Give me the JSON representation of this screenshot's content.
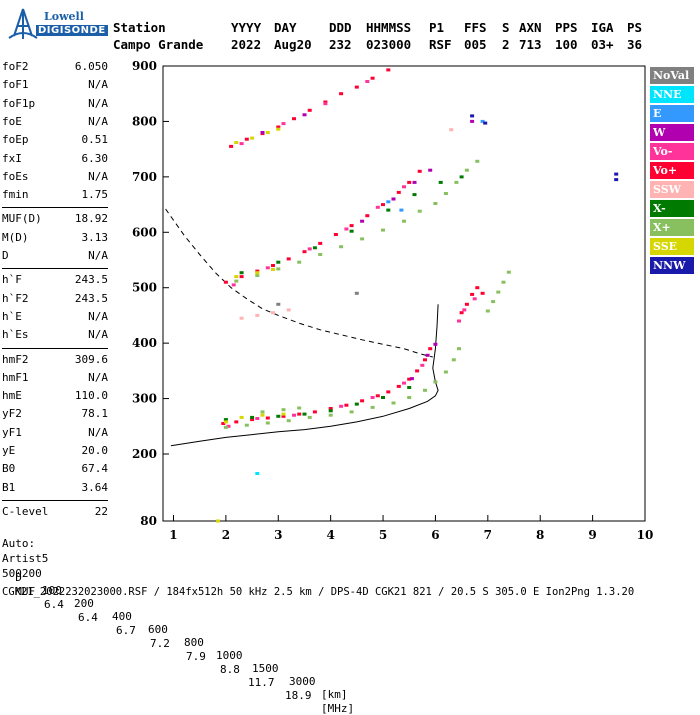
{
  "logo": {
    "line1": "Lowell",
    "line2": "DIGISONDE"
  },
  "header": {
    "labels": [
      "Station",
      "YYYY",
      "DAY",
      "DDD",
      "HHMMSS",
      "P1",
      "FFS",
      "S",
      "AXN",
      "PPS",
      "IGA",
      "PS"
    ],
    "values": [
      "Campo Grande",
      "2022",
      "Aug20",
      "232",
      "023000",
      "RSF",
      "005",
      "2",
      "713",
      "100",
      "03+",
      "36"
    ]
  },
  "params": {
    "group1": [
      {
        "k": "foF2",
        "v": "6.050"
      },
      {
        "k": "foF1",
        "v": "N/A"
      },
      {
        "k": "foF1p",
        "v": "N/A"
      },
      {
        "k": "foE",
        "v": "N/A"
      },
      {
        "k": "foEp",
        "v": "0.51"
      },
      {
        "k": "fxI",
        "v": "6.30"
      },
      {
        "k": "foEs",
        "v": "N/A"
      },
      {
        "k": "fmin",
        "v": "1.75"
      }
    ],
    "group2": [
      {
        "k": "MUF(D)",
        "v": "18.92"
      },
      {
        "k": "M(D)",
        "v": "3.13"
      },
      {
        "k": "D",
        "v": "N/A"
      }
    ],
    "group3": [
      {
        "k": "h`F",
        "v": "243.5"
      },
      {
        "k": "h`F2",
        "v": "243.5"
      },
      {
        "k": "h`E",
        "v": "N/A"
      },
      {
        "k": "h`Es",
        "v": "N/A"
      }
    ],
    "group4": [
      {
        "k": "hmF2",
        "v": "309.6"
      },
      {
        "k": "hmF1",
        "v": "N/A"
      },
      {
        "k": "hmE",
        "v": "110.0"
      },
      {
        "k": "yF2",
        "v": "78.1"
      },
      {
        "k": "yF1",
        "v": "N/A"
      },
      {
        "k": "yE",
        "v": "20.0"
      },
      {
        "k": "B0",
        "v": "67.4"
      },
      {
        "k": "B1",
        "v": "3.64"
      }
    ],
    "group5": [
      {
        "k": "C-level",
        "v": "22"
      }
    ],
    "auto": [
      "Auto:",
      "Artist5",
      "500200"
    ]
  },
  "legend": [
    {
      "label": "NoVal",
      "bg": "#808080",
      "fg": "#ffffff"
    },
    {
      "label": "NNE",
      "bg": "#00e5ff",
      "fg": "#ffffff"
    },
    {
      "label": "E",
      "bg": "#3399ff",
      "fg": "#ffffff"
    },
    {
      "label": "W",
      "bg": "#b000b0",
      "fg": "#ffffff"
    },
    {
      "label": "Vo-",
      "bg": "#ff3399",
      "fg": "#ffffff"
    },
    {
      "label": "Vo+",
      "bg": "#ff0033",
      "fg": "#ffffff"
    },
    {
      "label": "SSW",
      "bg": "#ffb3b3",
      "fg": "#ffffff"
    },
    {
      "label": "X-",
      "bg": "#007a00",
      "fg": "#ffffff"
    },
    {
      "label": "X+",
      "bg": "#88c060",
      "fg": "#ffffff"
    },
    {
      "label": "SSE",
      "bg": "#d6d600",
      "fg": "#ffffff"
    },
    {
      "label": "NNW",
      "bg": "#1a1aaa",
      "fg": "#ffffff"
    }
  ],
  "footer": {
    "d_label": "D",
    "d_values": [
      "100",
      "200",
      "400",
      "600",
      "800",
      "1000",
      "1500",
      "3000"
    ],
    "d_unit": "[km]",
    "muf_label": "MUF",
    "muf_values": [
      "6.4",
      "6.4",
      "6.7",
      "7.2",
      "7.9",
      "8.8",
      "11.7",
      "18.9"
    ],
    "muf_unit": "[MHz]",
    "info": "CGK21_2022232023000.RSF / 184fx512h 50 kHz 2.5 km / DPS-4D CGK21 821 / 20.5 S 305.0 E Ion2Png 1.3.20"
  },
  "chart_data": {
    "type": "scatter",
    "xlim": [
      0.8,
      10.0
    ],
    "ylim": [
      80,
      900
    ],
    "x_ticks": [
      1,
      2,
      3,
      4,
      5,
      6,
      7,
      8,
      9,
      10
    ],
    "y_ticks": [
      80,
      200,
      300,
      400,
      500,
      600,
      700,
      800,
      900
    ],
    "xlabel": "",
    "ylabel": "",
    "series": [
      {
        "legend": "Vo+",
        "color": "#ff0033",
        "points": [
          [
            1.95,
            255
          ],
          [
            2.2,
            258
          ],
          [
            2.5,
            262
          ],
          [
            2.8,
            265
          ],
          [
            3.1,
            268
          ],
          [
            3.4,
            272
          ],
          [
            3.7,
            276
          ],
          [
            4.0,
            282
          ],
          [
            4.3,
            288
          ],
          [
            4.6,
            296
          ],
          [
            4.9,
            305
          ],
          [
            5.1,
            312
          ],
          [
            5.3,
            322
          ],
          [
            5.5,
            335
          ],
          [
            5.65,
            350
          ],
          [
            5.8,
            370
          ],
          [
            5.9,
            390
          ],
          [
            2.0,
            510
          ],
          [
            2.3,
            520
          ],
          [
            2.6,
            530
          ],
          [
            2.9,
            540
          ],
          [
            3.2,
            552
          ],
          [
            3.5,
            565
          ],
          [
            3.8,
            580
          ],
          [
            4.1,
            596
          ],
          [
            4.4,
            612
          ],
          [
            4.7,
            630
          ],
          [
            5.0,
            650
          ],
          [
            5.3,
            672
          ],
          [
            5.5,
            690
          ],
          [
            5.7,
            710
          ],
          [
            2.1,
            755
          ],
          [
            2.4,
            768
          ],
          [
            2.7,
            778
          ],
          [
            3.0,
            790
          ],
          [
            3.3,
            805
          ],
          [
            3.6,
            820
          ],
          [
            3.9,
            835
          ],
          [
            4.2,
            850
          ],
          [
            4.5,
            862
          ],
          [
            4.8,
            878
          ],
          [
            5.1,
            893
          ],
          [
            6.5,
            455
          ],
          [
            6.6,
            470
          ],
          [
            6.7,
            488
          ],
          [
            6.8,
            500
          ],
          [
            6.9,
            490
          ]
        ]
      },
      {
        "legend": "Vo-",
        "color": "#ff3399",
        "points": [
          [
            2.05,
            250
          ],
          [
            2.6,
            264
          ],
          [
            3.3,
            270
          ],
          [
            4.2,
            286
          ],
          [
            4.8,
            302
          ],
          [
            5.4,
            328
          ],
          [
            5.75,
            360
          ],
          [
            2.15,
            505
          ],
          [
            2.8,
            536
          ],
          [
            3.6,
            570
          ],
          [
            4.3,
            606
          ],
          [
            4.9,
            645
          ],
          [
            5.4,
            682
          ],
          [
            2.3,
            760
          ],
          [
            3.1,
            796
          ],
          [
            3.9,
            832
          ],
          [
            4.7,
            872
          ],
          [
            6.45,
            440
          ],
          [
            6.55,
            460
          ],
          [
            6.75,
            480
          ]
        ]
      },
      {
        "legend": "X+",
        "color": "#88c060",
        "points": [
          [
            2.0,
            248
          ],
          [
            2.4,
            252
          ],
          [
            2.8,
            256
          ],
          [
            3.2,
            260
          ],
          [
            3.6,
            266
          ],
          [
            4.0,
            270
          ],
          [
            4.4,
            276
          ],
          [
            4.8,
            284
          ],
          [
            5.2,
            292
          ],
          [
            5.5,
            302
          ],
          [
            5.8,
            315
          ],
          [
            6.0,
            330
          ],
          [
            6.2,
            348
          ],
          [
            6.35,
            370
          ],
          [
            6.45,
            390
          ],
          [
            2.2,
            512
          ],
          [
            2.6,
            522
          ],
          [
            3.0,
            534
          ],
          [
            3.4,
            546
          ],
          [
            3.8,
            560
          ],
          [
            4.2,
            574
          ],
          [
            4.6,
            588
          ],
          [
            5.0,
            604
          ],
          [
            5.4,
            620
          ],
          [
            5.7,
            638
          ],
          [
            6.0,
            652
          ],
          [
            6.2,
            670
          ],
          [
            6.4,
            690
          ],
          [
            6.6,
            712
          ],
          [
            6.8,
            728
          ],
          [
            7.0,
            458
          ],
          [
            7.1,
            475
          ],
          [
            7.2,
            492
          ],
          [
            7.3,
            510
          ],
          [
            7.4,
            528
          ],
          [
            3.1,
            280
          ],
          [
            2.7,
            276
          ],
          [
            3.4,
            283
          ]
        ]
      },
      {
        "legend": "X-",
        "color": "#007a00",
        "points": [
          [
            2.0,
            262
          ],
          [
            2.5,
            266
          ],
          [
            3.0,
            268
          ],
          [
            3.5,
            272
          ],
          [
            4.0,
            278
          ],
          [
            4.5,
            290
          ],
          [
            5.0,
            302
          ],
          [
            5.5,
            320
          ],
          [
            2.3,
            527
          ],
          [
            3.0,
            546
          ],
          [
            3.7,
            572
          ],
          [
            4.4,
            602
          ],
          [
            5.1,
            640
          ],
          [
            5.6,
            668
          ],
          [
            6.1,
            690
          ],
          [
            6.5,
            700
          ]
        ]
      },
      {
        "legend": "SSE",
        "color": "#d6d600",
        "points": [
          [
            2.0,
            258
          ],
          [
            2.3,
            266
          ],
          [
            2.7,
            270
          ],
          [
            3.1,
            272
          ],
          [
            2.2,
            520
          ],
          [
            2.6,
            527
          ],
          [
            2.9,
            533
          ],
          [
            2.2,
            762
          ],
          [
            2.5,
            770
          ],
          [
            2.8,
            780
          ],
          [
            3.0,
            786
          ],
          [
            1.85,
            80
          ]
        ]
      },
      {
        "legend": "W",
        "color": "#b000b0",
        "points": [
          [
            5.55,
            336
          ],
          [
            5.85,
            378
          ],
          [
            6.0,
            398
          ],
          [
            4.6,
            620
          ],
          [
            5.2,
            660
          ],
          [
            5.6,
            690
          ],
          [
            5.9,
            712
          ],
          [
            2.7,
            780
          ],
          [
            3.5,
            812
          ],
          [
            6.7,
            800
          ]
        ]
      },
      {
        "legend": "E",
        "color": "#3399ff",
        "points": [
          [
            5.35,
            640
          ],
          [
            5.1,
            655
          ],
          [
            6.9,
            800
          ]
        ]
      },
      {
        "legend": "NNW",
        "color": "#1a1aaa",
        "points": [
          [
            6.7,
            810
          ],
          [
            6.95,
            797
          ],
          [
            9.45,
            695
          ],
          [
            9.45,
            705
          ]
        ]
      },
      {
        "legend": "SSW",
        "color": "#ffb3b3",
        "points": [
          [
            2.3,
            445
          ],
          [
            2.6,
            450
          ],
          [
            2.9,
            455
          ],
          [
            3.2,
            460
          ],
          [
            6.3,
            785
          ]
        ]
      },
      {
        "legend": "NNE",
        "color": "#00e5ff",
        "points": [
          [
            2.6,
            165
          ]
        ]
      },
      {
        "legend": "NoVal",
        "color": "#808080",
        "points": [
          [
            3.0,
            470
          ],
          [
            4.5,
            490
          ]
        ]
      }
    ],
    "profile_curve": [
      [
        0.95,
        215
      ],
      [
        1.5,
        223
      ],
      [
        2.0,
        230
      ],
      [
        2.5,
        235
      ],
      [
        3.0,
        240
      ],
      [
        3.5,
        244
      ],
      [
        4.0,
        250
      ],
      [
        4.5,
        258
      ],
      [
        5.0,
        268
      ],
      [
        5.5,
        282
      ],
      [
        5.85,
        295
      ],
      [
        6.0,
        305
      ],
      [
        6.05,
        315
      ],
      [
        6.0,
        330
      ],
      [
        5.95,
        355
      ],
      [
        6.0,
        390
      ],
      [
        6.03,
        430
      ],
      [
        6.05,
        470
      ]
    ],
    "dashed_curve": [
      [
        0.85,
        642
      ],
      [
        1.2,
        595
      ],
      [
        1.5,
        560
      ],
      [
        1.8,
        527
      ],
      [
        2.1,
        500
      ],
      [
        2.4,
        480
      ],
      [
        2.7,
        462
      ],
      [
        3.0,
        450
      ],
      [
        3.4,
        436
      ],
      [
        3.8,
        424
      ],
      [
        4.2,
        415
      ],
      [
        4.6,
        406
      ],
      [
        5.0,
        398
      ],
      [
        5.4,
        390
      ],
      [
        5.7,
        381
      ],
      [
        5.95,
        375
      ]
    ]
  }
}
